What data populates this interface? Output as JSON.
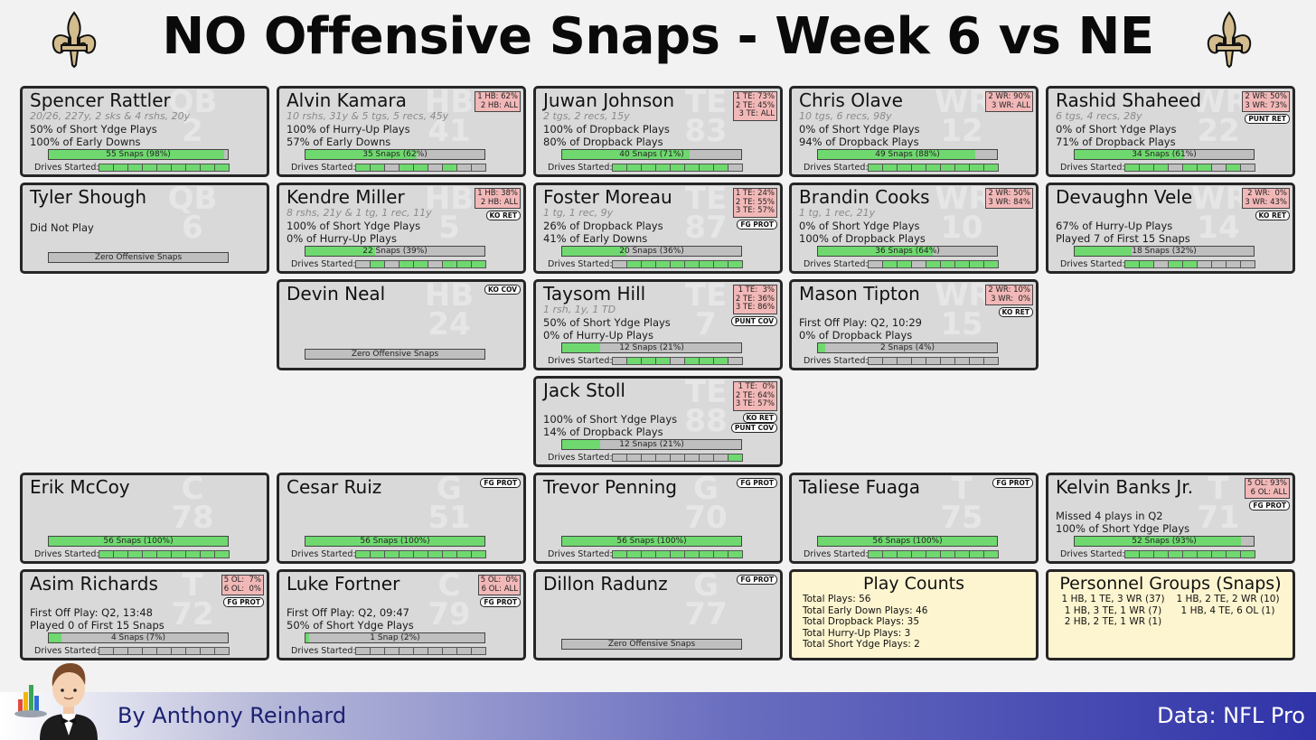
{
  "title": "NO Offensive Snaps - Week 6 vs NE",
  "footer": {
    "author": "By Anthony Reinhard",
    "source": "Data: NFL Pro"
  },
  "labels": {
    "drives_started": "Drives Started:"
  },
  "colors": {
    "snap_fill": "#6fd96f",
    "drive_on": "#6fd96f",
    "badge": "#f2b8b8",
    "card_bg": "#d9d9d9",
    "summary_bg": "#fdf5d0"
  },
  "chart_data": {
    "type": "table",
    "total_drives": 9,
    "players": [
      {
        "name": "Spencer Rattler",
        "pos": "QB",
        "num": "2",
        "sub": "20/26, 227y, 2 sks & 4 rshs, 20y",
        "lines": [
          "50% of Short Ydge Plays",
          "100% of Early Downs"
        ],
        "snaps": 55,
        "pct": 98,
        "snap_label": "55 Snaps (98%)",
        "drives": [
          1,
          1,
          1,
          1,
          1,
          1,
          1,
          1,
          1
        ],
        "badges": [],
        "tags": []
      },
      {
        "name": "Alvin Kamara",
        "pos": "HB",
        "num": "41",
        "sub": "10 rshs, 31y & 5 tgs, 5 recs, 45y",
        "lines": [
          "100% of Hurry-Up Plays",
          "57% of Early Downs"
        ],
        "snaps": 35,
        "pct": 62,
        "snap_label": "35 Snaps (62%)",
        "drives": [
          1,
          1,
          0,
          1,
          1,
          0,
          1,
          0,
          0
        ],
        "badges": [
          "1 HB: 62%",
          "2 HB: ALL"
        ],
        "tags": []
      },
      {
        "name": "Juwan Johnson",
        "pos": "TE",
        "num": "83",
        "sub": "2 tgs, 2 recs, 15y",
        "lines": [
          "100% of Dropback Plays",
          "80% of Dropback Plays"
        ],
        "snaps": 40,
        "pct": 71,
        "snap_label": "40 Snaps (71%)",
        "drives": [
          1,
          1,
          1,
          1,
          1,
          1,
          1,
          1,
          0
        ],
        "badges": [
          "1 TE: 73%",
          "2 TE: 45%",
          "3 TE: ALL"
        ],
        "tags": []
      },
      {
        "name": "Chris Olave",
        "pos": "WR",
        "num": "12",
        "sub": "10 tgs, 6 recs, 98y",
        "lines": [
          "0% of Short Ydge Plays",
          "94% of Dropback Plays"
        ],
        "snaps": 49,
        "pct": 88,
        "snap_label": "49 Snaps (88%)",
        "drives": [
          1,
          1,
          1,
          1,
          1,
          1,
          1,
          1,
          1
        ],
        "badges": [
          "2 WR: 90%",
          "3 WR: ALL"
        ],
        "tags": []
      },
      {
        "name": "Rashid Shaheed",
        "pos": "WR",
        "num": "22",
        "sub": "6 tgs, 4 recs, 28y",
        "lines": [
          "0% of Short Ydge Plays",
          "71% of Dropback Plays"
        ],
        "snaps": 34,
        "pct": 61,
        "snap_label": "34 Snaps (61%)",
        "drives": [
          1,
          1,
          1,
          0,
          1,
          1,
          0,
          1,
          0
        ],
        "badges": [
          "2 WR: 50%",
          "3 WR: 73%"
        ],
        "tags": [
          "PUNT RET"
        ]
      },
      {
        "name": "Tyler Shough",
        "pos": "QB",
        "num": "6",
        "sub": "",
        "lines": [
          "Did Not Play"
        ],
        "snaps": 0,
        "pct": 0,
        "snap_label": "Zero Offensive Snaps",
        "drives": null,
        "badges": [],
        "tags": []
      },
      {
        "name": "Kendre Miller",
        "pos": "HB",
        "num": "5",
        "sub": "8 rshs, 21y & 1 tg, 1 rec, 11y",
        "lines": [
          "100% of Short Ydge Plays",
          "0% of Hurry-Up Plays"
        ],
        "snaps": 22,
        "pct": 39,
        "snap_label": "22 Snaps (39%)",
        "drives": [
          0,
          1,
          0,
          1,
          1,
          0,
          1,
          1,
          1
        ],
        "badges": [
          "1 HB: 38%",
          "2 HB: ALL"
        ],
        "tags": [
          "KO RET"
        ]
      },
      {
        "name": "Foster Moreau",
        "pos": "TE",
        "num": "87",
        "sub": "1 tg, 1 rec, 9y",
        "lines": [
          "26% of Dropback Plays",
          "41% of Early Downs"
        ],
        "snaps": 20,
        "pct": 36,
        "snap_label": "20 Snaps (36%)",
        "drives": [
          0,
          1,
          1,
          1,
          1,
          1,
          1,
          1,
          1
        ],
        "badges": [
          "1 TE: 24%",
          "2 TE: 55%",
          "3 TE: 57%"
        ],
        "tags": [
          "FG PROT"
        ]
      },
      {
        "name": "Brandin Cooks",
        "pos": "WR",
        "num": "10",
        "sub": "1 tg, 1 rec, 21y",
        "lines": [
          "0% of Short Ydge Plays",
          "100% of Dropback Plays"
        ],
        "snaps": 36,
        "pct": 64,
        "snap_label": "36 Snaps (64%)",
        "drives": [
          0,
          1,
          1,
          0,
          1,
          1,
          1,
          1,
          1
        ],
        "badges": [
          "2 WR: 50%",
          "3 WR: 84%"
        ],
        "tags": []
      },
      {
        "name": "Devaughn Vele",
        "pos": "WR",
        "num": "14",
        "sub": "",
        "lines": [
          "67% of Hurry-Up Plays",
          "Played 7 of First 15 Snaps"
        ],
        "snaps": 18,
        "pct": 32,
        "snap_label": "18 Snaps (32%)",
        "drives": [
          1,
          1,
          0,
          1,
          1,
          0,
          0,
          0,
          0
        ],
        "badges": [
          "2 WR:  0%",
          "3 WR: 43%"
        ],
        "tags": [
          "KO RET"
        ]
      },
      {
        "name": "Devin Neal",
        "pos": "HB",
        "num": "24",
        "sub": "",
        "lines": [],
        "snaps": 0,
        "pct": 0,
        "snap_label": "Zero Offensive Snaps",
        "drives": null,
        "badges": [],
        "tags": [
          "KO COV"
        ]
      },
      {
        "name": "Taysom Hill",
        "pos": "TE",
        "num": "7",
        "sub": "1 rsh, 1y, 1 TD",
        "lines": [
          "50% of Short Ydge Plays",
          "0% of Hurry-Up Plays"
        ],
        "snaps": 12,
        "pct": 21,
        "snap_label": "12 Snaps (21%)",
        "drives": [
          0,
          1,
          1,
          1,
          0,
          1,
          1,
          1,
          0
        ],
        "badges": [
          "1 TE:  3%",
          "2 TE: 36%",
          "3 TE: 86%"
        ],
        "tags": [
          "PUNT COV"
        ]
      },
      {
        "name": "Mason Tipton",
        "pos": "WR",
        "num": "15",
        "sub": "",
        "lines": [
          "First Off Play: Q2, 10:29",
          "0% of Dropback Plays"
        ],
        "snaps": 2,
        "pct": 4,
        "snap_label": "2 Snaps (4%)",
        "drives": [
          0,
          0,
          0,
          0,
          0,
          0,
          0,
          0,
          0
        ],
        "badges": [
          "2 WR: 10%",
          "3 WR:  0%"
        ],
        "tags": [
          "KO RET"
        ]
      },
      {
        "name": "Jack Stoll",
        "pos": "TE",
        "num": "88",
        "sub": "",
        "lines": [
          "100% of Short Ydge Plays",
          "14% of Dropback Plays"
        ],
        "snaps": 12,
        "pct": 21,
        "snap_label": "12 Snaps (21%)",
        "drives": [
          0,
          0,
          0,
          0,
          0,
          0,
          0,
          0,
          1
        ],
        "badges": [
          "1 TE:  0%",
          "2 TE: 64%",
          "3 TE: 57%"
        ],
        "tags": [
          "KO RET",
          "PUNT COV"
        ]
      },
      {
        "name": "Erik McCoy",
        "pos": "C",
        "num": "78",
        "sub": "",
        "lines": [],
        "snaps": 56,
        "pct": 100,
        "snap_label": "56 Snaps (100%)",
        "drives": [
          1,
          1,
          1,
          1,
          1,
          1,
          1,
          1,
          1
        ],
        "badges": [],
        "tags": []
      },
      {
        "name": "Cesar Ruiz",
        "pos": "G",
        "num": "51",
        "sub": "",
        "lines": [],
        "snaps": 56,
        "pct": 100,
        "snap_label": "56 Snaps (100%)",
        "drives": [
          1,
          1,
          1,
          1,
          1,
          1,
          1,
          1,
          1
        ],
        "badges": [],
        "tags": [
          "FG PROT"
        ]
      },
      {
        "name": "Trevor Penning",
        "pos": "G",
        "num": "70",
        "sub": "",
        "lines": [],
        "snaps": 56,
        "pct": 100,
        "snap_label": "56 Snaps (100%)",
        "drives": [
          1,
          1,
          1,
          1,
          1,
          1,
          1,
          1,
          1
        ],
        "badges": [],
        "tags": [
          "FG PROT"
        ]
      },
      {
        "name": "Taliese Fuaga",
        "pos": "T",
        "num": "75",
        "sub": "",
        "lines": [],
        "snaps": 56,
        "pct": 100,
        "snap_label": "56 Snaps (100%)",
        "drives": [
          1,
          1,
          1,
          1,
          1,
          1,
          1,
          1,
          1
        ],
        "badges": [],
        "tags": [
          "FG PROT"
        ]
      },
      {
        "name": "Kelvin Banks Jr.",
        "pos": "T",
        "num": "71",
        "sub": "",
        "lines": [
          "Missed 4 plays in Q2",
          "100% of Short Ydge Plays"
        ],
        "snaps": 52,
        "pct": 93,
        "snap_label": "52 Snaps (93%)",
        "drives": [
          1,
          1,
          1,
          1,
          1,
          1,
          1,
          1,
          1
        ],
        "badges": [
          "5 OL: 93%",
          "6 OL: ALL"
        ],
        "tags": [
          "FG PROT"
        ]
      },
      {
        "name": "Asim Richards",
        "pos": "T",
        "num": "72",
        "sub": "",
        "lines": [
          "First Off Play: Q2, 13:48",
          "Played 0 of First 15 Snaps"
        ],
        "snaps": 4,
        "pct": 7,
        "snap_label": "4 Snaps (7%)",
        "drives": [
          0,
          0,
          0,
          0,
          0,
          0,
          0,
          0,
          0
        ],
        "badges": [
          "5 OL:  7%",
          "6 OL:  0%"
        ],
        "tags": [
          "FG PROT"
        ]
      },
      {
        "name": "Luke Fortner",
        "pos": "C",
        "num": "79",
        "sub": "",
        "lines": [
          "First Off Play: Q2, 09:47",
          "50% of Short Ydge Plays"
        ],
        "snaps": 1,
        "pct": 2,
        "snap_label": "1 Snap (2%)",
        "drives": [
          0,
          0,
          0,
          0,
          0,
          0,
          0,
          0,
          0
        ],
        "badges": [
          "5 OL:  0%",
          "6 OL: ALL"
        ],
        "tags": [
          "FG PROT"
        ]
      },
      {
        "name": "Dillon Radunz",
        "pos": "G",
        "num": "77",
        "sub": "",
        "lines": [],
        "snaps": 0,
        "pct": 0,
        "snap_label": "Zero Offensive Snaps",
        "drives": null,
        "badges": [],
        "tags": [
          "FG PROT"
        ]
      }
    ],
    "play_counts": {
      "title": "Play Counts",
      "lines": [
        "Total Plays: 56",
        "Total Early Down Plays: 46",
        "Total Dropback Plays: 35",
        "Total Hurry-Up Plays: 3",
        "Total Short Ydge Plays: 2"
      ]
    },
    "personnel": {
      "title": "Personnel Groups (Snaps)",
      "col1": [
        "1 HB, 1 TE, 3 WR (37)",
        "1 HB, 3 TE, 1 WR (7)",
        "2 HB, 2 TE, 1 WR (1)"
      ],
      "col2": [
        "1 HB, 2 TE, 2 WR (10)",
        "1 HB, 4 TE, 6 OL (1)"
      ]
    }
  }
}
